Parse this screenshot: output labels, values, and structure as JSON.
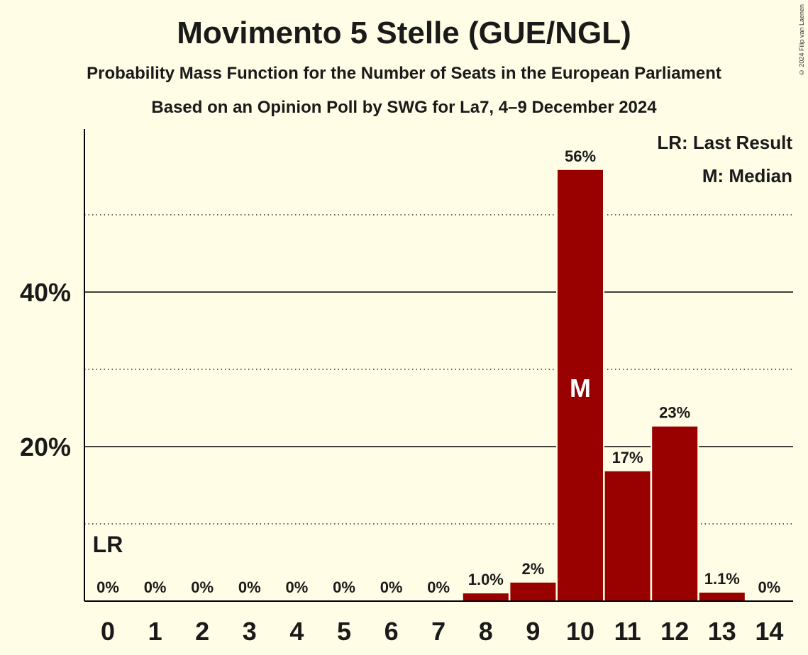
{
  "chart_data": {
    "type": "bar",
    "title": "Movimento 5 Stelle (GUE/NGL)",
    "subtitle": "Probability Mass Function for the Number of Seats in the European Parliament",
    "subtitle2": "Based on an Opinion Poll by SWG for La7, 4–9 December 2024",
    "copyright": "© 2024 Filip van Laenen",
    "categories": [
      "0",
      "1",
      "2",
      "3",
      "4",
      "5",
      "6",
      "7",
      "8",
      "9",
      "10",
      "11",
      "12",
      "13",
      "14"
    ],
    "values": [
      0,
      0,
      0,
      0,
      0,
      0,
      0,
      0,
      1.0,
      2.4,
      55.8,
      16.8,
      22.6,
      1.1,
      0
    ],
    "labels": [
      "0%",
      "0%",
      "0%",
      "0%",
      "0%",
      "0%",
      "0%",
      "0%",
      "1.0%",
      "2%",
      "56%",
      "17%",
      "23%",
      "1.1%",
      "0%"
    ],
    "ylim": [
      0,
      61
    ],
    "yticks_major": [
      {
        "value": 20,
        "label": "20%"
      },
      {
        "value": 40,
        "label": "40%"
      }
    ],
    "yticks_minor": [
      10,
      30,
      50
    ],
    "last_result_index": 0,
    "last_result_marker": "LR",
    "median_index": 10,
    "median_marker": "M",
    "legend": [
      "LR: Last Result",
      "M: Median"
    ],
    "legend_position": "top-right",
    "bar_color": "#990000"
  }
}
